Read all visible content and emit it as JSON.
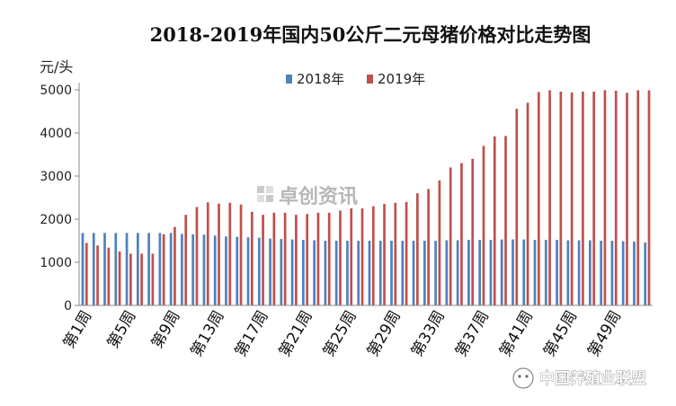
{
  "chart_data": {
    "type": "bar",
    "title": "2018-2019年国内50公斤二元母猪价格对比走势图",
    "ylabel": "元/头",
    "xlabel": "",
    "ylim": [
      0,
      5000
    ],
    "yticks": [
      0,
      1000,
      2000,
      3000,
      4000,
      5000
    ],
    "grid": false,
    "legend_position": "top-center",
    "categories": [
      "第1周",
      "第2周",
      "第3周",
      "第4周",
      "第5周",
      "第6周",
      "第7周",
      "第8周",
      "第9周",
      "第10周",
      "第11周",
      "第12周",
      "第13周",
      "第14周",
      "第15周",
      "第16周",
      "第17周",
      "第18周",
      "第19周",
      "第20周",
      "第21周",
      "第22周",
      "第23周",
      "第24周",
      "第25周",
      "第26周",
      "第27周",
      "第28周",
      "第29周",
      "第30周",
      "第31周",
      "第32周",
      "第33周",
      "第34周",
      "第35周",
      "第36周",
      "第37周",
      "第38周",
      "第39周",
      "第40周",
      "第41周",
      "第42周",
      "第43周",
      "第44周",
      "第45周",
      "第46周",
      "第47周",
      "第48周",
      "第49周",
      "第50周",
      "第51周",
      "第52周"
    ],
    "visible_tick_labels": [
      "第1周",
      "第5周",
      "第9周",
      "第13周",
      "第17周",
      "第21周",
      "第25周",
      "第29周",
      "第33周",
      "第37周",
      "第41周",
      "第45周",
      "第49周"
    ],
    "series": [
      {
        "name": "2018年",
        "color": "#4f81bd",
        "values": [
          1680,
          1680,
          1680,
          1680,
          1680,
          1680,
          1680,
          1680,
          1680,
          1660,
          1650,
          1640,
          1620,
          1600,
          1590,
          1580,
          1570,
          1550,
          1540,
          1530,
          1520,
          1510,
          1500,
          1500,
          1500,
          1500,
          1500,
          1500,
          1500,
          1500,
          1500,
          1500,
          1500,
          1510,
          1510,
          1520,
          1520,
          1520,
          1530,
          1530,
          1530,
          1520,
          1520,
          1520,
          1510,
          1510,
          1510,
          1500,
          1500,
          1490,
          1480,
          1460
        ]
      },
      {
        "name": "2019年",
        "color": "#c0504d",
        "values": [
          1450,
          1390,
          1340,
          1250,
          1200,
          1200,
          1200,
          1650,
          1820,
          2100,
          2280,
          2390,
          2360,
          2380,
          2340,
          2170,
          2100,
          2150,
          2150,
          2100,
          2120,
          2150,
          2150,
          2200,
          2250,
          2250,
          2300,
          2350,
          2380,
          2400,
          2600,
          2700,
          2900,
          3200,
          3300,
          3400,
          3700,
          3920,
          3930,
          4560,
          4700,
          4950,
          4990,
          4960,
          4940,
          4960,
          4960,
          4990,
          4980,
          4930,
          4990,
          4990
        ]
      }
    ],
    "watermark": "卓创资讯",
    "brand": "中国养殖业联盟"
  }
}
